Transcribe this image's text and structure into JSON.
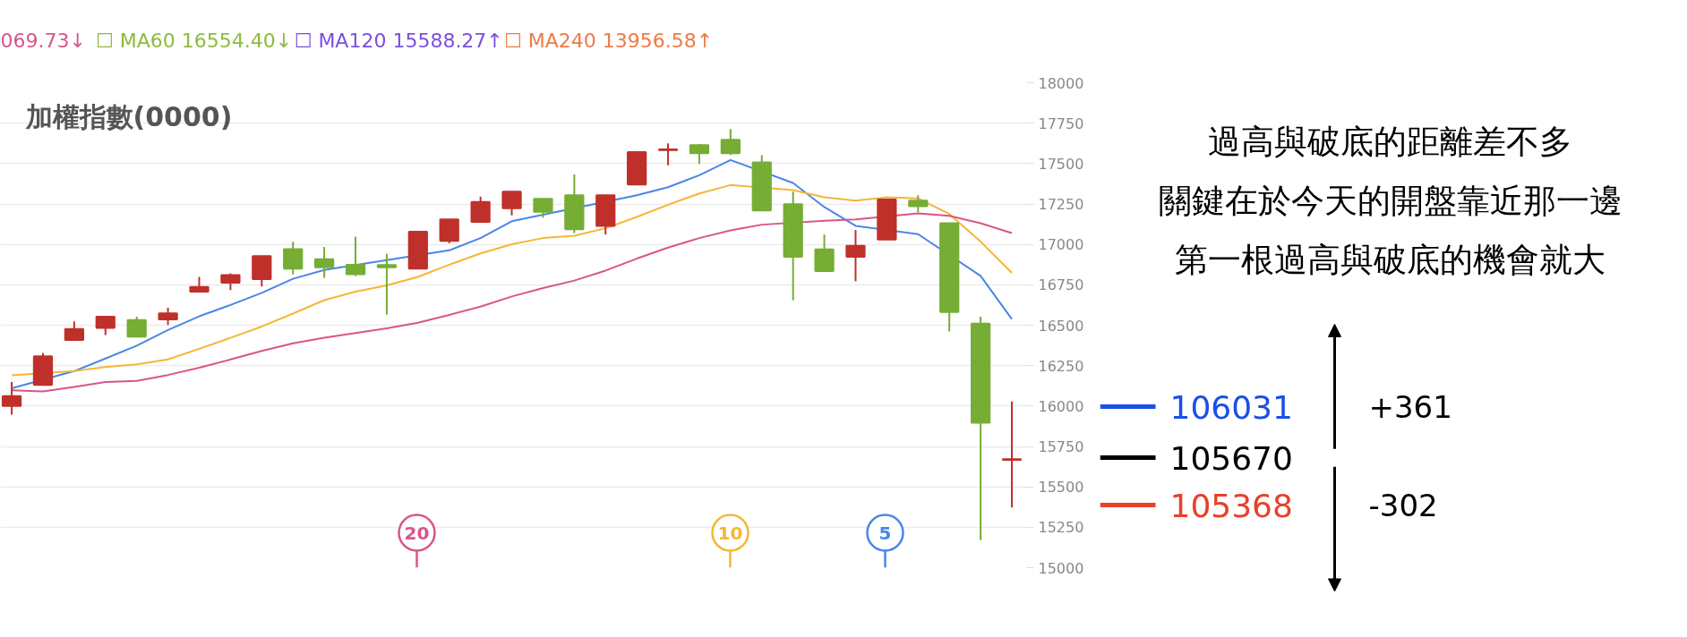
{
  "chart_data": {
    "type": "candlestick",
    "title": "加權指數(0000)",
    "categories": [
      null,
      null,
      null,
      null,
      null,
      null,
      null,
      null,
      null,
      null,
      null,
      null,
      null,
      null,
      null,
      null,
      null,
      null,
      null,
      null,
      null,
      null,
      null,
      null,
      null,
      null,
      null,
      null,
      null,
      null,
      null,
      null,
      null
    ],
    "ohlc": [
      [
        16001,
        16148,
        15946,
        16061
      ],
      [
        16131,
        16328,
        16131,
        16307
      ],
      [
        16409,
        16524,
        16409,
        16477
      ],
      [
        16483,
        16553,
        16439,
        16553
      ],
      [
        16532,
        16553,
        16430,
        16430
      ],
      [
        16536,
        16608,
        16502,
        16574
      ],
      [
        16708,
        16799,
        16708,
        16736
      ],
      [
        16763,
        16821,
        16717,
        16810
      ],
      [
        16785,
        16927,
        16740,
        16927
      ],
      [
        16971,
        17016,
        16814,
        16850
      ],
      [
        16908,
        16984,
        16793,
        16859
      ],
      [
        16874,
        17048,
        16804,
        16816
      ],
      [
        16872,
        16942,
        16566,
        16859
      ],
      [
        16850,
        17079,
        16850,
        17079
      ],
      [
        17022,
        17154,
        17007,
        17154
      ],
      [
        17139,
        17296,
        17139,
        17262
      ],
      [
        17224,
        17326,
        17179,
        17326
      ],
      [
        17282,
        17282,
        17166,
        17201
      ],
      [
        17304,
        17433,
        17070,
        17094
      ],
      [
        17115,
        17304,
        17061,
        17304
      ],
      [
        17371,
        17571,
        17371,
        17571
      ],
      [
        17584,
        17625,
        17490,
        17588
      ],
      [
        17614,
        17621,
        17498,
        17564
      ],
      [
        17647,
        17713,
        17553,
        17564
      ],
      [
        17507,
        17551,
        17210,
        17210
      ],
      [
        17249,
        17326,
        16654,
        16923
      ],
      [
        16969,
        17061,
        16835,
        16835
      ],
      [
        16923,
        17089,
        16772,
        16991
      ],
      [
        17030,
        17277,
        17030,
        17277
      ],
      [
        17271,
        17304,
        17199,
        17236
      ],
      [
        17131,
        17131,
        16461,
        16582
      ],
      [
        16509,
        16553,
        15170,
        15897
      ],
      [
        15667,
        16028,
        15372,
        15671
      ]
    ],
    "colors": [
      "#c0302a",
      "#c0302a",
      "#c0302a",
      "#c0302a",
      "#76ad35",
      "#c0302a",
      "#c0302a",
      "#c0302a",
      "#c0302a",
      "#76ad35",
      "#76ad35",
      "#76ad35",
      "#76ad35",
      "#c0302a",
      "#c0302a",
      "#c0302a",
      "#c0302a",
      "#76ad35",
      "#76ad35",
      "#c0302a",
      "#c0302a",
      "#c0302a",
      "#76ad35",
      "#76ad35",
      "#76ad35",
      "#76ad35",
      "#76ad35",
      "#c0302a",
      "#c0302a",
      "#76ad35",
      "#76ad35",
      "#76ad35",
      "#c0302a"
    ],
    "series": [
      {
        "type": "line",
        "color": "#4a86e8",
        "values": [
          16110,
          null,
          16216,
          16294,
          16373,
          16470,
          16555,
          16625,
          16700,
          16787,
          16842,
          null,
          null,
          null,
          16963,
          17039,
          17143,
          null,
          null,
          null,
          17304,
          17354,
          17428,
          17522,
          null,
          17380,
          17231,
          17115,
          null,
          17063,
          null,
          16805,
          16538
        ]
      },
      {
        "type": "line",
        "color": "#f5b636",
        "values": [
          16190,
          null,
          16216,
          16241,
          16258,
          16288,
          16354,
          16422,
          16492,
          16572,
          16655,
          16708,
          16746,
          16799,
          16874,
          16944,
          17001,
          17039,
          17054,
          17100,
          17170,
          17245,
          17315,
          17367,
          null,
          17336,
          17291,
          17271,
          17291,
          17284,
          17188,
          17017,
          16824
        ]
      },
      {
        "type": "line",
        "color": "#d9558a",
        "values": [
          16097,
          16091,
          16118,
          16148,
          16156,
          16192,
          16237,
          16288,
          16341,
          16388,
          16422,
          16451,
          16481,
          16515,
          16564,
          16615,
          16678,
          16730,
          16776,
          16838,
          16912,
          16980,
          17039,
          17087,
          17122,
          null,
          17146,
          17155,
          null,
          17192,
          17177,
          17131,
          17070
        ]
      }
    ],
    "ylim": [
      15000,
      18000
    ],
    "yticks": [
      15000,
      15250,
      15500,
      15750,
      16000,
      16250,
      16500,
      16750,
      17000,
      17250,
      17500,
      17750,
      18000
    ],
    "grid": "y",
    "tick_labels": "y",
    "annotations": [
      "069.73↓",
      "☐ MA60 16554.40↓",
      "☐ MA120 15588.27↑",
      "☐ MA240 13956.58↑",
      "20",
      "10",
      "5",
      "過高與破底的距離差不多",
      "關鍵在於今天的開盤靠近那一邊",
      "第一根過高與破底的機會就大",
      "+361",
      "-302",
      "106031",
      "105670",
      "105368"
    ]
  }
}
